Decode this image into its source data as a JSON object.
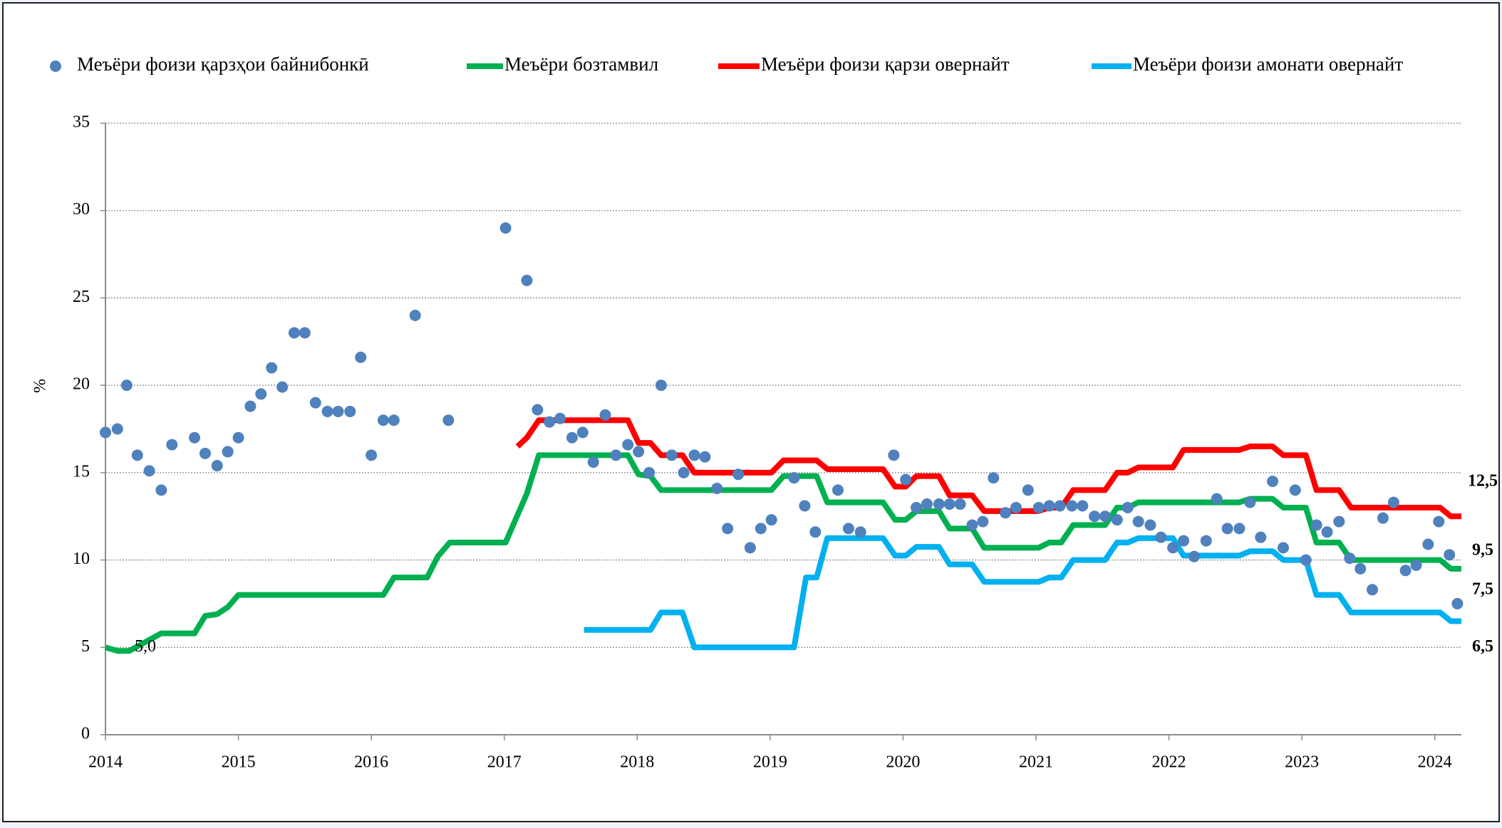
{
  "chart_data": {
    "type": "line",
    "ylabel": "%",
    "xlim": [
      2014,
      2024.2
    ],
    "xticks": [
      2014,
      2015,
      2016,
      2017,
      2018,
      2019,
      2020,
      2021,
      2022,
      2023,
      2024
    ],
    "ylim": [
      0,
      35
    ],
    "yticks": [
      0,
      5,
      10,
      15,
      20,
      25,
      30,
      35
    ],
    "grid": true,
    "legend": "top",
    "series": [
      {
        "name": "Меъёри фоизи  қарзҳои байнибонкӣ",
        "type": "scatter",
        "color": "#4f81bd",
        "x": [
          2014.0,
          2014.09,
          2014.16,
          2014.24,
          2014.33,
          2014.42,
          2014.5,
          2014.67,
          2014.75,
          2014.84,
          2014.92,
          2015.0,
          2015.09,
          2015.17,
          2015.25,
          2015.33,
          2015.42,
          2015.5,
          2015.58,
          2015.67,
          2015.75,
          2015.84,
          2015.92,
          2016.0,
          2016.09,
          2016.17,
          2016.33,
          2016.58,
          2017.01,
          2017.17,
          2017.25,
          2017.34,
          2017.42,
          2017.51,
          2017.59,
          2017.67,
          2017.76,
          2017.84,
          2017.93,
          2018.01,
          2018.09,
          2018.18,
          2018.26,
          2018.35,
          2018.43,
          2018.51,
          2018.6,
          2018.68,
          2018.76,
          2018.85,
          2018.93,
          2019.01,
          2019.18,
          2019.26,
          2019.34,
          2019.51,
          2019.59,
          2019.68,
          2019.93,
          2020.02,
          2020.1,
          2020.18,
          2020.27,
          2020.35,
          2020.43,
          2020.52,
          2020.6,
          2020.68,
          2020.77,
          2020.85,
          2020.94,
          2021.02,
          2021.1,
          2021.18,
          2021.27,
          2021.35,
          2021.44,
          2021.52,
          2021.61,
          2021.69,
          2021.77,
          2021.86,
          2021.94,
          2022.03,
          2022.11,
          2022.19,
          2022.28,
          2022.36,
          2022.44,
          2022.53,
          2022.61,
          2022.69,
          2022.78,
          2022.86,
          2022.95,
          2023.03,
          2023.11,
          2023.19,
          2023.28,
          2023.36,
          2023.44,
          2023.53,
          2023.61,
          2023.69,
          2023.78,
          2023.86,
          2023.95,
          2024.03,
          2024.11,
          2024.17
        ],
        "values": [
          17.3,
          17.5,
          20,
          16,
          15.1,
          14,
          16.6,
          17,
          16.1,
          15.4,
          16.2,
          17,
          18.8,
          19.5,
          21,
          19.9,
          23,
          23,
          19,
          18.5,
          18.5,
          18.5,
          21.6,
          16,
          18,
          18,
          24,
          18,
          29,
          26,
          18.6,
          17.9,
          18.1,
          17,
          17.3,
          15.6,
          18.3,
          16,
          16.6,
          16.2,
          15,
          20,
          16,
          15,
          16,
          15.9,
          14.1,
          11.8,
          14.9,
          10.7,
          11.8,
          12.3,
          14.7,
          13.1,
          11.6,
          14,
          11.8,
          11.6,
          16,
          14.6,
          13,
          13.2,
          13.2,
          13.2,
          13.2,
          12,
          12.2,
          14.7,
          12.7,
          13,
          14,
          13,
          13.1,
          13.1,
          13.1,
          13.1,
          12.5,
          12.5,
          12.3,
          13,
          12.2,
          12,
          11.3,
          10.7,
          11.1,
          10.2,
          11.1,
          13.5,
          11.8,
          11.8,
          13.3,
          11.3,
          14.5,
          10.7,
          14,
          10,
          12,
          11.6,
          12.2,
          10.1,
          9.5,
          8.3,
          12.4,
          13.3,
          9.4,
          9.7,
          10.9,
          12.2,
          10.3,
          7.5
        ]
      },
      {
        "name": "Меъёри бозтамвил",
        "type": "line",
        "color": "#00b050",
        "x": [
          2014.0,
          2014.09,
          2014.18,
          2014.25,
          2014.42,
          2014.67,
          2014.75,
          2014.84,
          2014.92,
          2015.0,
          2016.09,
          2016.17,
          2016.42,
          2016.5,
          2016.59,
          2017.01,
          2017.17,
          2017.26,
          2017.93,
          2018.01,
          2018.1,
          2018.18,
          2019.01,
          2019.1,
          2019.35,
          2019.43,
          2019.85,
          2019.94,
          2020.02,
          2020.1,
          2020.27,
          2020.35,
          2020.52,
          2020.61,
          2021.02,
          2021.1,
          2021.19,
          2021.28,
          2021.52,
          2021.61,
          2021.69,
          2021.77,
          2022.53,
          2022.61,
          2022.78,
          2022.86,
          2023.03,
          2023.11,
          2023.28,
          2023.37,
          2024.04,
          2024.12,
          2024.2
        ],
        "values": [
          5.0,
          4.8,
          4.8,
          5.1,
          5.8,
          5.8,
          6.8,
          6.9,
          7.3,
          8,
          8,
          9,
          9,
          10.2,
          11,
          11,
          13.8,
          16,
          16,
          14.9,
          14.8,
          14,
          14,
          14.8,
          14.8,
          13.3,
          13.3,
          12.3,
          12.3,
          12.8,
          12.8,
          11.8,
          11.8,
          10.7,
          10.7,
          11,
          11,
          12,
          12,
          13,
          13,
          13.3,
          13.3,
          13.5,
          13.5,
          13,
          13,
          11,
          11,
          10,
          10,
          9.5,
          9.5
        ]
      },
      {
        "name": "Меъёри фоизи қарзи овернайт",
        "type": "line",
        "color": "#ff0000",
        "x": [
          2017.1,
          2017.17,
          2017.26,
          2017.93,
          2018.01,
          2018.1,
          2018.18,
          2018.34,
          2018.43,
          2019.01,
          2019.1,
          2019.35,
          2019.43,
          2019.85,
          2019.94,
          2020.02,
          2020.1,
          2020.27,
          2020.35,
          2020.52,
          2020.61,
          2021.02,
          2021.1,
          2021.19,
          2021.28,
          2021.52,
          2021.61,
          2021.69,
          2021.77,
          2022.03,
          2022.11,
          2022.53,
          2022.61,
          2022.78,
          2022.86,
          2023.03,
          2023.11,
          2023.28,
          2023.37,
          2024.04,
          2024.12,
          2024.2
        ],
        "values": [
          16.5,
          17,
          18,
          18,
          16.7,
          16.7,
          16,
          16,
          15,
          15,
          15.7,
          15.7,
          15.2,
          15.2,
          14.2,
          14.2,
          14.8,
          14.8,
          13.7,
          13.7,
          12.8,
          12.8,
          13,
          13,
          14,
          14,
          15,
          15,
          15.3,
          15.3,
          16.3,
          16.3,
          16.5,
          16.5,
          16,
          16,
          14,
          14,
          13,
          13,
          12.5,
          12.5
        ]
      },
      {
        "name": "Меъёри фоизи амонати овернайт",
        "type": "line",
        "color": "#00b0f0",
        "x": [
          2017.6,
          2018.1,
          2018.18,
          2018.34,
          2018.43,
          2019.18,
          2019.27,
          2019.35,
          2019.43,
          2019.85,
          2019.94,
          2020.02,
          2020.1,
          2020.27,
          2020.35,
          2020.52,
          2020.61,
          2021.02,
          2021.1,
          2021.19,
          2021.28,
          2021.52,
          2021.61,
          2021.69,
          2021.77,
          2022.03,
          2022.11,
          2022.53,
          2022.61,
          2022.78,
          2022.86,
          2023.03,
          2023.11,
          2023.28,
          2023.37,
          2024.04,
          2024.12,
          2024.2
        ],
        "values": [
          6,
          6,
          7,
          7,
          5,
          5,
          9,
          9,
          11.25,
          11.25,
          10.25,
          10.25,
          10.75,
          10.75,
          9.75,
          9.75,
          8.75,
          8.75,
          9,
          9,
          10,
          10,
          11,
          11,
          11.25,
          11.25,
          10.25,
          10.25,
          10.5,
          10.5,
          10,
          10,
          8,
          8,
          7,
          7,
          6.5,
          6.5
        ]
      }
    ],
    "annotations": [
      {
        "text": "5,0",
        "x": 2014.22,
        "y": 5.0,
        "color": "#000000"
      },
      {
        "text": "12,5",
        "x": 2024.2,
        "y": 12.5,
        "color": "#ff0000"
      },
      {
        "text": "9,5",
        "x": 2024.2,
        "y": 9.5,
        "color": "#00b050"
      },
      {
        "text": "7,5",
        "x": 2024.2,
        "y": 7.5,
        "color": "#4f81bd"
      },
      {
        "text": "6,5",
        "x": 2024.2,
        "y": 6.5,
        "color": "#00b0f0"
      }
    ]
  }
}
